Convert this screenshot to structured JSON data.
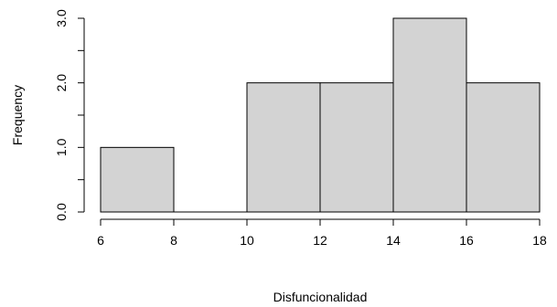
{
  "chart_data": {
    "type": "bar",
    "subtype": "histogram",
    "bins": [
      {
        "start": 6,
        "end": 8,
        "value": 1
      },
      {
        "start": 8,
        "end": 10,
        "value": 0
      },
      {
        "start": 10,
        "end": 12,
        "value": 2
      },
      {
        "start": 12,
        "end": 14,
        "value": 2
      },
      {
        "start": 14,
        "end": 16,
        "value": 3
      },
      {
        "start": 16,
        "end": 18,
        "value": 2
      }
    ],
    "xlabel": "Disfuncionalidad",
    "ylabel": "Frequency",
    "xticks": [
      "6",
      "8",
      "10",
      "12",
      "14",
      "16",
      "18"
    ],
    "yticks": [
      "0.0",
      "1.0",
      "2.0",
      "3.0"
    ],
    "xlim": [
      6,
      18
    ],
    "ylim": [
      0,
      3
    ],
    "grid": false,
    "colors": {
      "bar_fill": "#d3d3d3",
      "bar_stroke": "#000000",
      "axis": "#000000"
    }
  }
}
